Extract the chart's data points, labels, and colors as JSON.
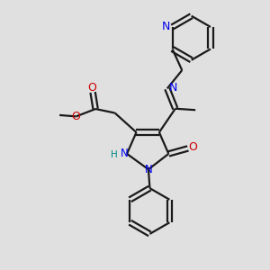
{
  "background_color": "#e0e0e0",
  "bond_color": "#1a1a1a",
  "N_color": "#0000ee",
  "O_color": "#cc0000",
  "H_color": "#008888",
  "line_width": 1.6,
  "fig_size": [
    3.0,
    3.0
  ],
  "dpi": 100,
  "xlim": [
    0,
    10
  ],
  "ylim": [
    0,
    10
  ]
}
